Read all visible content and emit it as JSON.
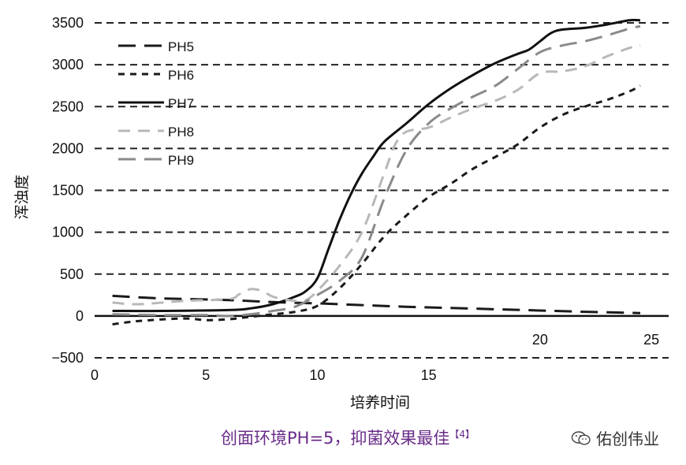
{
  "chart_data": {
    "type": "line",
    "xlabel": "培养时间",
    "ylabel": "浑浊度",
    "xlim": [
      0,
      25
    ],
    "ylim": [
      -500,
      3500
    ],
    "x_ticks": [
      0,
      5,
      10,
      15,
      20,
      25
    ],
    "y_ticks": [
      -500,
      0,
      500,
      1000,
      1500,
      2000,
      2500,
      3000,
      3500
    ],
    "grid": "horizontal-dashed",
    "legend_position": "top-left",
    "series": [
      {
        "name": "PH5",
        "color": "#1a1a1a",
        "dash": "long",
        "x": [
          0.8,
          3,
          6,
          8,
          10,
          12,
          14,
          16,
          18,
          20,
          22,
          24.5
        ],
        "y": [
          240,
          210,
          190,
          165,
          150,
          130,
          110,
          95,
          80,
          65,
          50,
          35
        ]
      },
      {
        "name": "PH6",
        "color": "#1a1a1a",
        "dash": "short",
        "x": [
          0.8,
          2,
          4,
          5,
          6,
          7,
          8,
          9,
          10,
          11,
          12,
          13,
          14,
          15,
          16,
          17,
          18,
          19,
          20,
          21,
          22,
          23,
          24,
          24.5
        ],
        "y": [
          -100,
          -60,
          -30,
          -50,
          -40,
          -10,
          20,
          50,
          120,
          330,
          620,
          950,
          1200,
          1420,
          1580,
          1760,
          1900,
          2050,
          2250,
          2400,
          2500,
          2580,
          2680,
          2750
        ]
      },
      {
        "name": "PH7",
        "color": "#111111",
        "dash": "solid",
        "x": [
          0.8,
          3,
          6,
          7,
          8,
          9,
          9.5,
          10,
          10.5,
          11,
          11.5,
          12,
          12.5,
          13,
          14,
          15,
          16,
          17,
          18,
          19,
          19.5,
          20,
          20.5,
          21,
          22,
          23,
          24,
          24.5
        ],
        "y": [
          60,
          60,
          70,
          90,
          140,
          230,
          300,
          450,
          800,
          1150,
          1450,
          1700,
          1900,
          2080,
          2300,
          2530,
          2720,
          2880,
          3020,
          3130,
          3180,
          3280,
          3380,
          3420,
          3440,
          3480,
          3530,
          3530
        ]
      },
      {
        "name": "PH8",
        "color": "#b8b8b8",
        "dash": "medium",
        "x": [
          0.8,
          2,
          4,
          6,
          6.5,
          7,
          7.5,
          8,
          8.5,
          9,
          9.5,
          10,
          11,
          12,
          13,
          13.5,
          14,
          15,
          16,
          17,
          18,
          19,
          20,
          21,
          22,
          23,
          24,
          24.5
        ],
        "y": [
          160,
          140,
          180,
          200,
          260,
          320,
          300,
          230,
          200,
          180,
          190,
          300,
          600,
          1000,
          1700,
          2050,
          2200,
          2250,
          2370,
          2480,
          2570,
          2700,
          2900,
          2920,
          2980,
          3100,
          3200,
          3230
        ]
      },
      {
        "name": "PH9",
        "color": "#8a8a8a",
        "dash": "long",
        "x": [
          0.8,
          3,
          5,
          6,
          7,
          8,
          9,
          10,
          11,
          12,
          13,
          14,
          15,
          16,
          17,
          18,
          19,
          20,
          21,
          22,
          23,
          24,
          24.5
        ],
        "y": [
          20,
          10,
          10,
          0,
          20,
          60,
          110,
          250,
          420,
          700,
          1400,
          1980,
          2300,
          2480,
          2620,
          2750,
          2950,
          3150,
          3230,
          3280,
          3350,
          3430,
          3460
        ]
      }
    ]
  },
  "caption": {
    "text": "创面环境PH=5，抑菌效果最佳",
    "ref": "【4】"
  },
  "watermark": {
    "icon": "wechat-icon",
    "text": "佑创伟业"
  }
}
